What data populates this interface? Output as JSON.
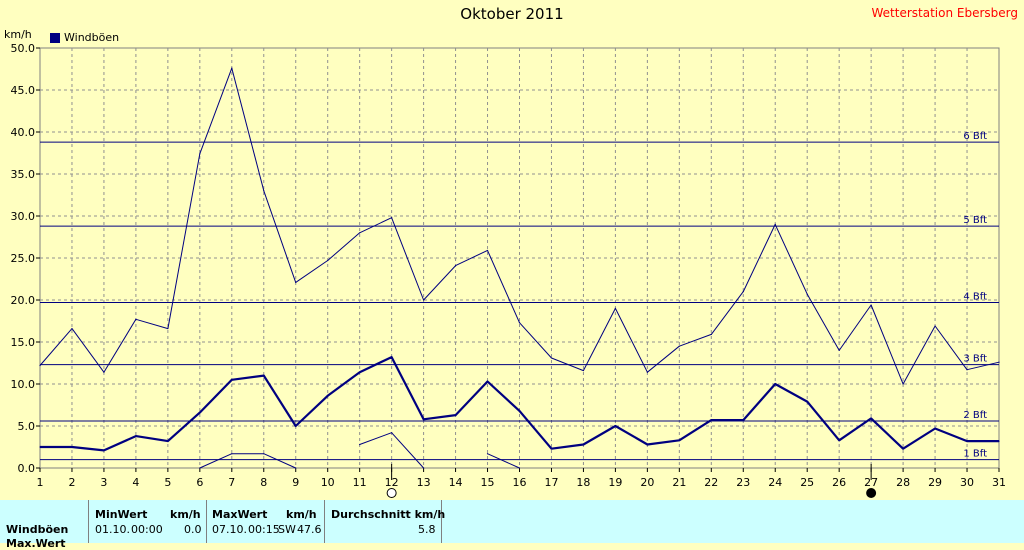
{
  "title": "Oktober 2011",
  "station": "Wetterstation Ebersberg",
  "unit": "km/h",
  "legend_label": "Windböen",
  "colors": {
    "background": "#ffffc0",
    "series": "#000080",
    "grid": "#808080",
    "station": "#ff0000",
    "stats_bg": "#ccffff"
  },
  "chart_data": {
    "type": "line",
    "title": "Oktober 2011",
    "ylabel": "km/h",
    "ylim": [
      0,
      50
    ],
    "xlim": [
      1,
      31
    ],
    "y_ticks": [
      "0.0",
      "5.0",
      "10.0",
      "15.0",
      "20.0",
      "25.0",
      "30.0",
      "35.0",
      "40.0",
      "45.0",
      "50.0"
    ],
    "x_ticks": [
      "1",
      "2",
      "3",
      "4",
      "5",
      "6",
      "7",
      "8",
      "9",
      "10",
      "11",
      "12",
      "13",
      "14",
      "15",
      "16",
      "17",
      "18",
      "19",
      "20",
      "21",
      "22",
      "23",
      "24",
      "25",
      "26",
      "27",
      "28",
      "29",
      "30",
      "31"
    ],
    "grid": true,
    "legend_position": "top-left",
    "beaufort_lines": [
      {
        "label": "1 Bft",
        "value": 1.0
      },
      {
        "label": "2 Bft",
        "value": 5.6
      },
      {
        "label": "3 Bft",
        "value": 12.3
      },
      {
        "label": "4 Bft",
        "value": 19.7
      },
      {
        "label": "5 Bft",
        "value": 28.8
      },
      {
        "label": "6 Bft",
        "value": 38.8
      }
    ],
    "series": [
      {
        "name": "Windböen",
        "style": "avg",
        "values": [
          2.5,
          2.5,
          2.1,
          3.8,
          3.2,
          6.6,
          10.5,
          11.0,
          5.0,
          8.6,
          11.4,
          13.2,
          5.8,
          6.3,
          10.3,
          6.8,
          2.3,
          2.8,
          5.0,
          2.8,
          3.3,
          5.7,
          5.7,
          10.0,
          7.9,
          3.3,
          5.9,
          2.3,
          4.7,
          3.2,
          3.2
        ]
      },
      {
        "style": "max",
        "values": [
          12.2,
          16.6,
          11.4,
          17.7,
          16.6,
          37.4,
          47.6,
          33.0,
          22.1,
          24.7,
          28.0,
          29.8,
          20.0,
          24.1,
          25.9,
          17.3,
          13.1,
          11.6,
          19.0,
          11.4,
          14.5,
          15.9,
          21.0,
          29.0,
          20.7,
          14.0,
          19.4,
          10.0,
          16.9,
          11.7,
          12.6
        ]
      },
      {
        "style": "min",
        "values": [
          null,
          null,
          null,
          null,
          null,
          0.0,
          1.7,
          1.7,
          0.0,
          null,
          2.8,
          4.2,
          0.0,
          null,
          1.7,
          0.0,
          null,
          null,
          null,
          null,
          null,
          null,
          null,
          null,
          null,
          null,
          null,
          null,
          null,
          null,
          null
        ]
      }
    ],
    "moon_phases": [
      {
        "day": 12,
        "phase": "full-moon"
      },
      {
        "day": 27,
        "phase": "new-moon"
      }
    ]
  },
  "stats": {
    "headers": {
      "min": "MinWert",
      "min_unit": "km/h",
      "max": "MaxWert",
      "max_unit": "km/h",
      "avg": "Durchschnitt km/h"
    },
    "rows": [
      {
        "label": "Windböen",
        "min_date": "01.10.",
        "min_time": "00:00",
        "min_value": "0.0",
        "max_date": "07.10.",
        "max_time": "00:15",
        "max_dir": "SW",
        "max_value": "47.6",
        "avg": "5.8"
      }
    ],
    "partial_label": "Max.Wert"
  }
}
